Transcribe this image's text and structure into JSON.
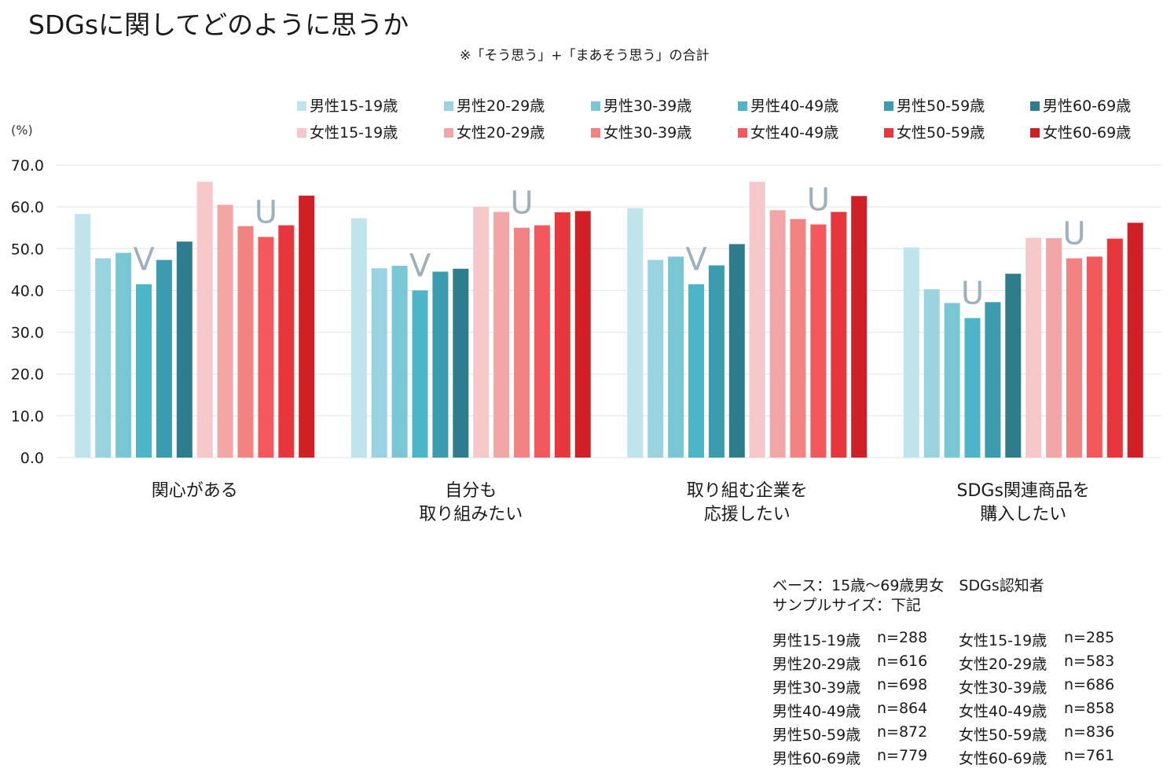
{
  "title": "SDGsに関してどのように思うか",
  "subtitle": "※「そう思う」+「まあそう思う」の合計",
  "chart_data": {
    "type": "bar",
    "unit_label": "(%)",
    "ylim": [
      0,
      70
    ],
    "yticks": [
      "0.0",
      "10.0",
      "20.0",
      "30.0",
      "40.0",
      "50.0",
      "60.0",
      "70.0"
    ],
    "grid": true,
    "legend_position": "top-right",
    "categories": [
      [
        "関心がある"
      ],
      [
        "自分も",
        "取り組みたい"
      ],
      [
        "取り組む企業を",
        "応援したい"
      ],
      [
        "SDGs関連商品を",
        "購入したい"
      ]
    ],
    "series": [
      {
        "name": "男性15-19歳",
        "color": "#bfe4ec",
        "values": [
          58.3,
          57.3,
          59.7,
          50.3
        ]
      },
      {
        "name": "男性20-29歳",
        "color": "#99d3df",
        "values": [
          47.7,
          45.3,
          47.3,
          40.3
        ]
      },
      {
        "name": "男性30-39歳",
        "color": "#79c7d5",
        "values": [
          49.0,
          45.9,
          48.1,
          37.0
        ]
      },
      {
        "name": "男性40-49歳",
        "color": "#4db5c8",
        "values": [
          41.5,
          40.0,
          41.5,
          33.4
        ]
      },
      {
        "name": "男性50-59歳",
        "color": "#3a9cae",
        "values": [
          47.3,
          44.5,
          46.0,
          37.2
        ]
      },
      {
        "name": "男性60-69歳",
        "color": "#2e7d8c",
        "values": [
          51.7,
          45.2,
          51.1,
          44.0
        ]
      },
      {
        "name": "女性15-19歳",
        "color": "#f6c8c9",
        "values": [
          66.0,
          60.0,
          66.0,
          52.6
        ]
      },
      {
        "name": "女性20-29歳",
        "color": "#f3a6a6",
        "values": [
          60.5,
          58.8,
          59.2,
          52.5
        ]
      },
      {
        "name": "女性30-39歳",
        "color": "#f38282",
        "values": [
          55.4,
          55.0,
          57.1,
          47.7
        ]
      },
      {
        "name": "女性40-49歳",
        "color": "#f5585c",
        "values": [
          52.8,
          55.6,
          55.8,
          48.1
        ]
      },
      {
        "name": "女性50-59歳",
        "color": "#e8373c",
        "values": [
          55.6,
          58.7,
          58.8,
          52.4
        ]
      },
      {
        "name": "女性60-69歳",
        "color": "#d01f25",
        "values": [
          62.7,
          59.0,
          62.6,
          56.2
        ]
      }
    ],
    "annotations": [
      {
        "text": "V",
        "category_index": 0,
        "series_index": 3
      },
      {
        "text": "U",
        "category_index": 0,
        "series_index": 9
      },
      {
        "text": "V",
        "category_index": 1,
        "series_index": 3
      },
      {
        "text": "U",
        "category_index": 1,
        "series_index": 8
      },
      {
        "text": "V",
        "category_index": 2,
        "series_index": 3
      },
      {
        "text": "U",
        "category_index": 2,
        "series_index": 9
      },
      {
        "text": "U",
        "category_index": 3,
        "series_index": 3
      },
      {
        "text": "U",
        "category_index": 3,
        "series_index": 8
      }
    ],
    "annotation_color": "#9fb0bb"
  },
  "base_info": {
    "line1": "ベース：15歳～69歳男女　SDGs認知者",
    "line2": "サンプルサイズ：下記"
  },
  "sample_sizes": {
    "male": [
      {
        "label": "男性15-19歳",
        "n": "n=288"
      },
      {
        "label": "男性20-29歳",
        "n": "n=616"
      },
      {
        "label": "男性30-39歳",
        "n": "n=698"
      },
      {
        "label": "男性40-49歳",
        "n": "n=864"
      },
      {
        "label": "男性50-59歳",
        "n": "n=872"
      },
      {
        "label": "男性60-69歳",
        "n": "n=779"
      }
    ],
    "female": [
      {
        "label": "女性15-19歳",
        "n": "n=285"
      },
      {
        "label": "女性20-29歳",
        "n": "n=583"
      },
      {
        "label": "女性30-39歳",
        "n": "n=686"
      },
      {
        "label": "女性40-49歳",
        "n": "n=858"
      },
      {
        "label": "女性50-59歳",
        "n": "n=836"
      },
      {
        "label": "女性60-69歳",
        "n": "n=761"
      }
    ]
  }
}
